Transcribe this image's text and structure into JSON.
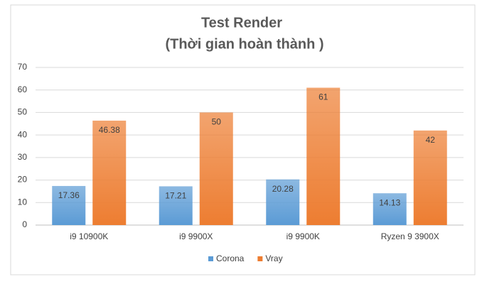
{
  "chart_data": {
    "type": "bar",
    "title": "Test Render",
    "subtitle": "(Thời gian hoàn thành  )",
    "categories": [
      "i9 10900K",
      "i9 9900X",
      "i9 9900K",
      "Ryzen 9 3900X"
    ],
    "series": [
      {
        "name": "Corona",
        "color": "#5b9bd5",
        "values": [
          17.36,
          17.21,
          20.28,
          14.13
        ]
      },
      {
        "name": "Vray",
        "color": "#ed7d31",
        "values": [
          46.38,
          50,
          61,
          42
        ]
      }
    ],
    "ylim": [
      0,
      70
    ],
    "yticks": [
      0,
      10,
      20,
      30,
      40,
      50,
      60,
      70
    ],
    "grid": true,
    "legend": "bottom"
  }
}
